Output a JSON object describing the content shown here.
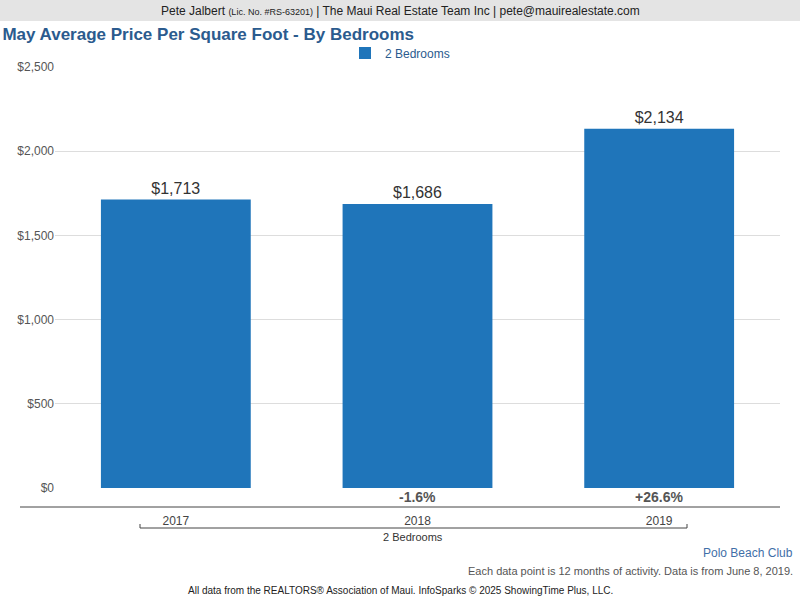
{
  "chart_data": {
    "type": "bar",
    "header": {
      "name": "Pete Jalbert",
      "license": "(Lic. No. #RS-63201)",
      "rest": "| The Maui Real Estate Team Inc | pete@mauirealestate.com"
    },
    "title": "May Average Price Per Square Foot - By Bedrooms",
    "categories": [
      "2017",
      "2018",
      "2019"
    ],
    "series": [
      {
        "name": "2 Bedrooms",
        "color": "#1f75ba",
        "values": [
          1713,
          1686,
          2134
        ],
        "value_labels": [
          "$1,713",
          "$1,686",
          "$2,134"
        ]
      }
    ],
    "annotations": [
      {
        "category": "2018",
        "text": "-1.6%"
      },
      {
        "category": "2019",
        "text": "+26.6%"
      }
    ],
    "xlabel": "2 Bedrooms",
    "ylim": [
      0,
      2500
    ],
    "yticks": [
      {
        "value": 0,
        "label": "$0"
      },
      {
        "value": 500,
        "label": "$500"
      },
      {
        "value": 1000,
        "label": "$1,000"
      },
      {
        "value": 1500,
        "label": "$1,500"
      },
      {
        "value": 2000,
        "label": "$2,000"
      },
      {
        "value": 2500,
        "label": "$2,500"
      }
    ],
    "grid": true,
    "legend": "top",
    "data_labels": true,
    "caption": "Polo Beach Club",
    "note": "Each data point is 12 months of activity. Data is from June 8, 2019.",
    "source": "All data from the REALTORS® Association of Maui. InfoSparks © 2025 ShowingTime Plus, LLC."
  }
}
